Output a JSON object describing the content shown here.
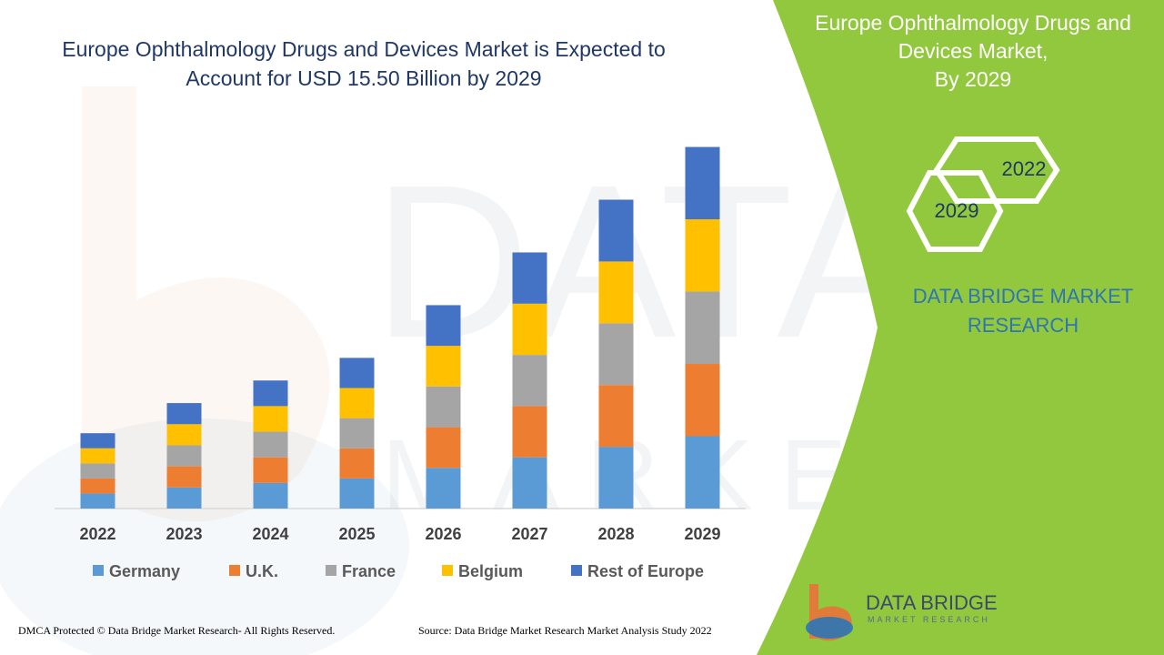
{
  "header": {
    "title_line1": "Europe Ophthalmology Drugs and Devices Market is Expected to",
    "title_line2": "Account for USD 15.50 Billion by 2029"
  },
  "panel": {
    "title_line1": "Europe Ophthalmology Drugs and",
    "title_line2": "Devices Market,",
    "title_line3": "By 2029",
    "hex_top": "2022",
    "hex_bottom": "2029",
    "brand_line1": "DATA BRIDGE MARKET",
    "brand_line2": "RESEARCH",
    "green": "#92c83e"
  },
  "logo": {
    "name": "DATA BRIDGE",
    "sub": "MARKET RESEARCH"
  },
  "footer": {
    "copyright": "DMCA Protected © Data Bridge Market Research- All Rights Reserved.",
    "source": "Source: Data Bridge Market Research Market Analysis Study 2022"
  },
  "chart_data": {
    "type": "bar",
    "stacked": true,
    "categories": [
      "2022",
      "2023",
      "2024",
      "2025",
      "2026",
      "2027",
      "2028",
      "2029"
    ],
    "series": [
      {
        "name": "Germany",
        "color": "#5b9bd5",
        "values": [
          1.0,
          1.4,
          1.7,
          2.0,
          2.7,
          3.4,
          4.1,
          4.8
        ]
      },
      {
        "name": "U.K.",
        "color": "#ed7d31",
        "values": [
          1.0,
          1.4,
          1.7,
          2.0,
          2.7,
          3.4,
          4.1,
          4.8
        ]
      },
      {
        "name": "France",
        "color": "#a5a5a5",
        "values": [
          1.0,
          1.4,
          1.7,
          2.0,
          2.7,
          3.4,
          4.1,
          4.8
        ]
      },
      {
        "name": "Belgium",
        "color": "#ffc000",
        "values": [
          1.0,
          1.4,
          1.7,
          2.0,
          2.7,
          3.4,
          4.1,
          4.8
        ]
      },
      {
        "name": "Rest of Europe",
        "color": "#4472c4",
        "values": [
          1.0,
          1.4,
          1.7,
          2.0,
          2.7,
          3.4,
          4.1,
          4.8
        ]
      }
    ],
    "ylim": [
      0,
      25
    ],
    "legend": "bottom",
    "grid": false
  }
}
